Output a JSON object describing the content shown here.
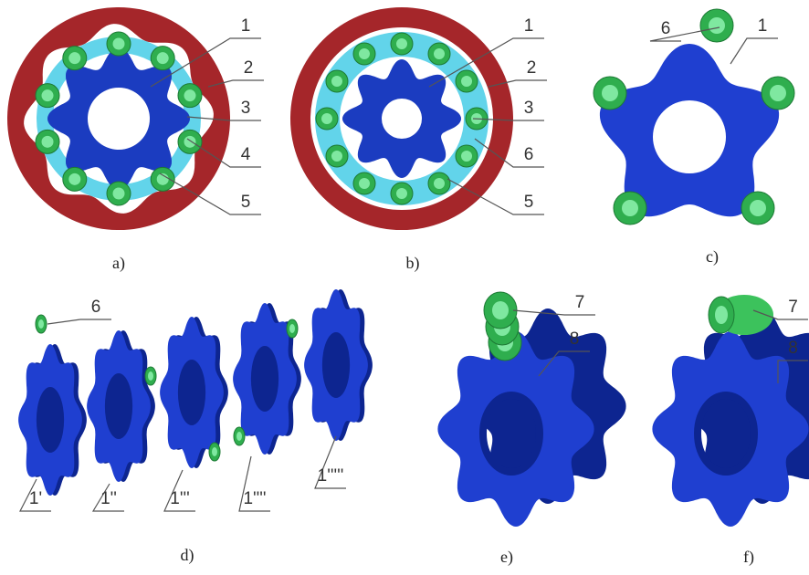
{
  "panels": [
    {
      "label": "a)",
      "callouts": [
        "1",
        "2",
        "3",
        "4",
        "5"
      ]
    },
    {
      "label": "b)",
      "callouts": [
        "1",
        "2",
        "3",
        "6",
        "5"
      ]
    },
    {
      "label": "c)",
      "callouts": [
        "6",
        "1"
      ]
    },
    {
      "label": "d)",
      "callouts": [
        "6",
        "1'",
        "1''",
        "1'''",
        "1''''",
        "1'''''"
      ]
    },
    {
      "label": "e)",
      "callouts": [
        "7",
        "8"
      ]
    },
    {
      "label": "f)",
      "callouts": [
        "7",
        "8"
      ]
    }
  ]
}
